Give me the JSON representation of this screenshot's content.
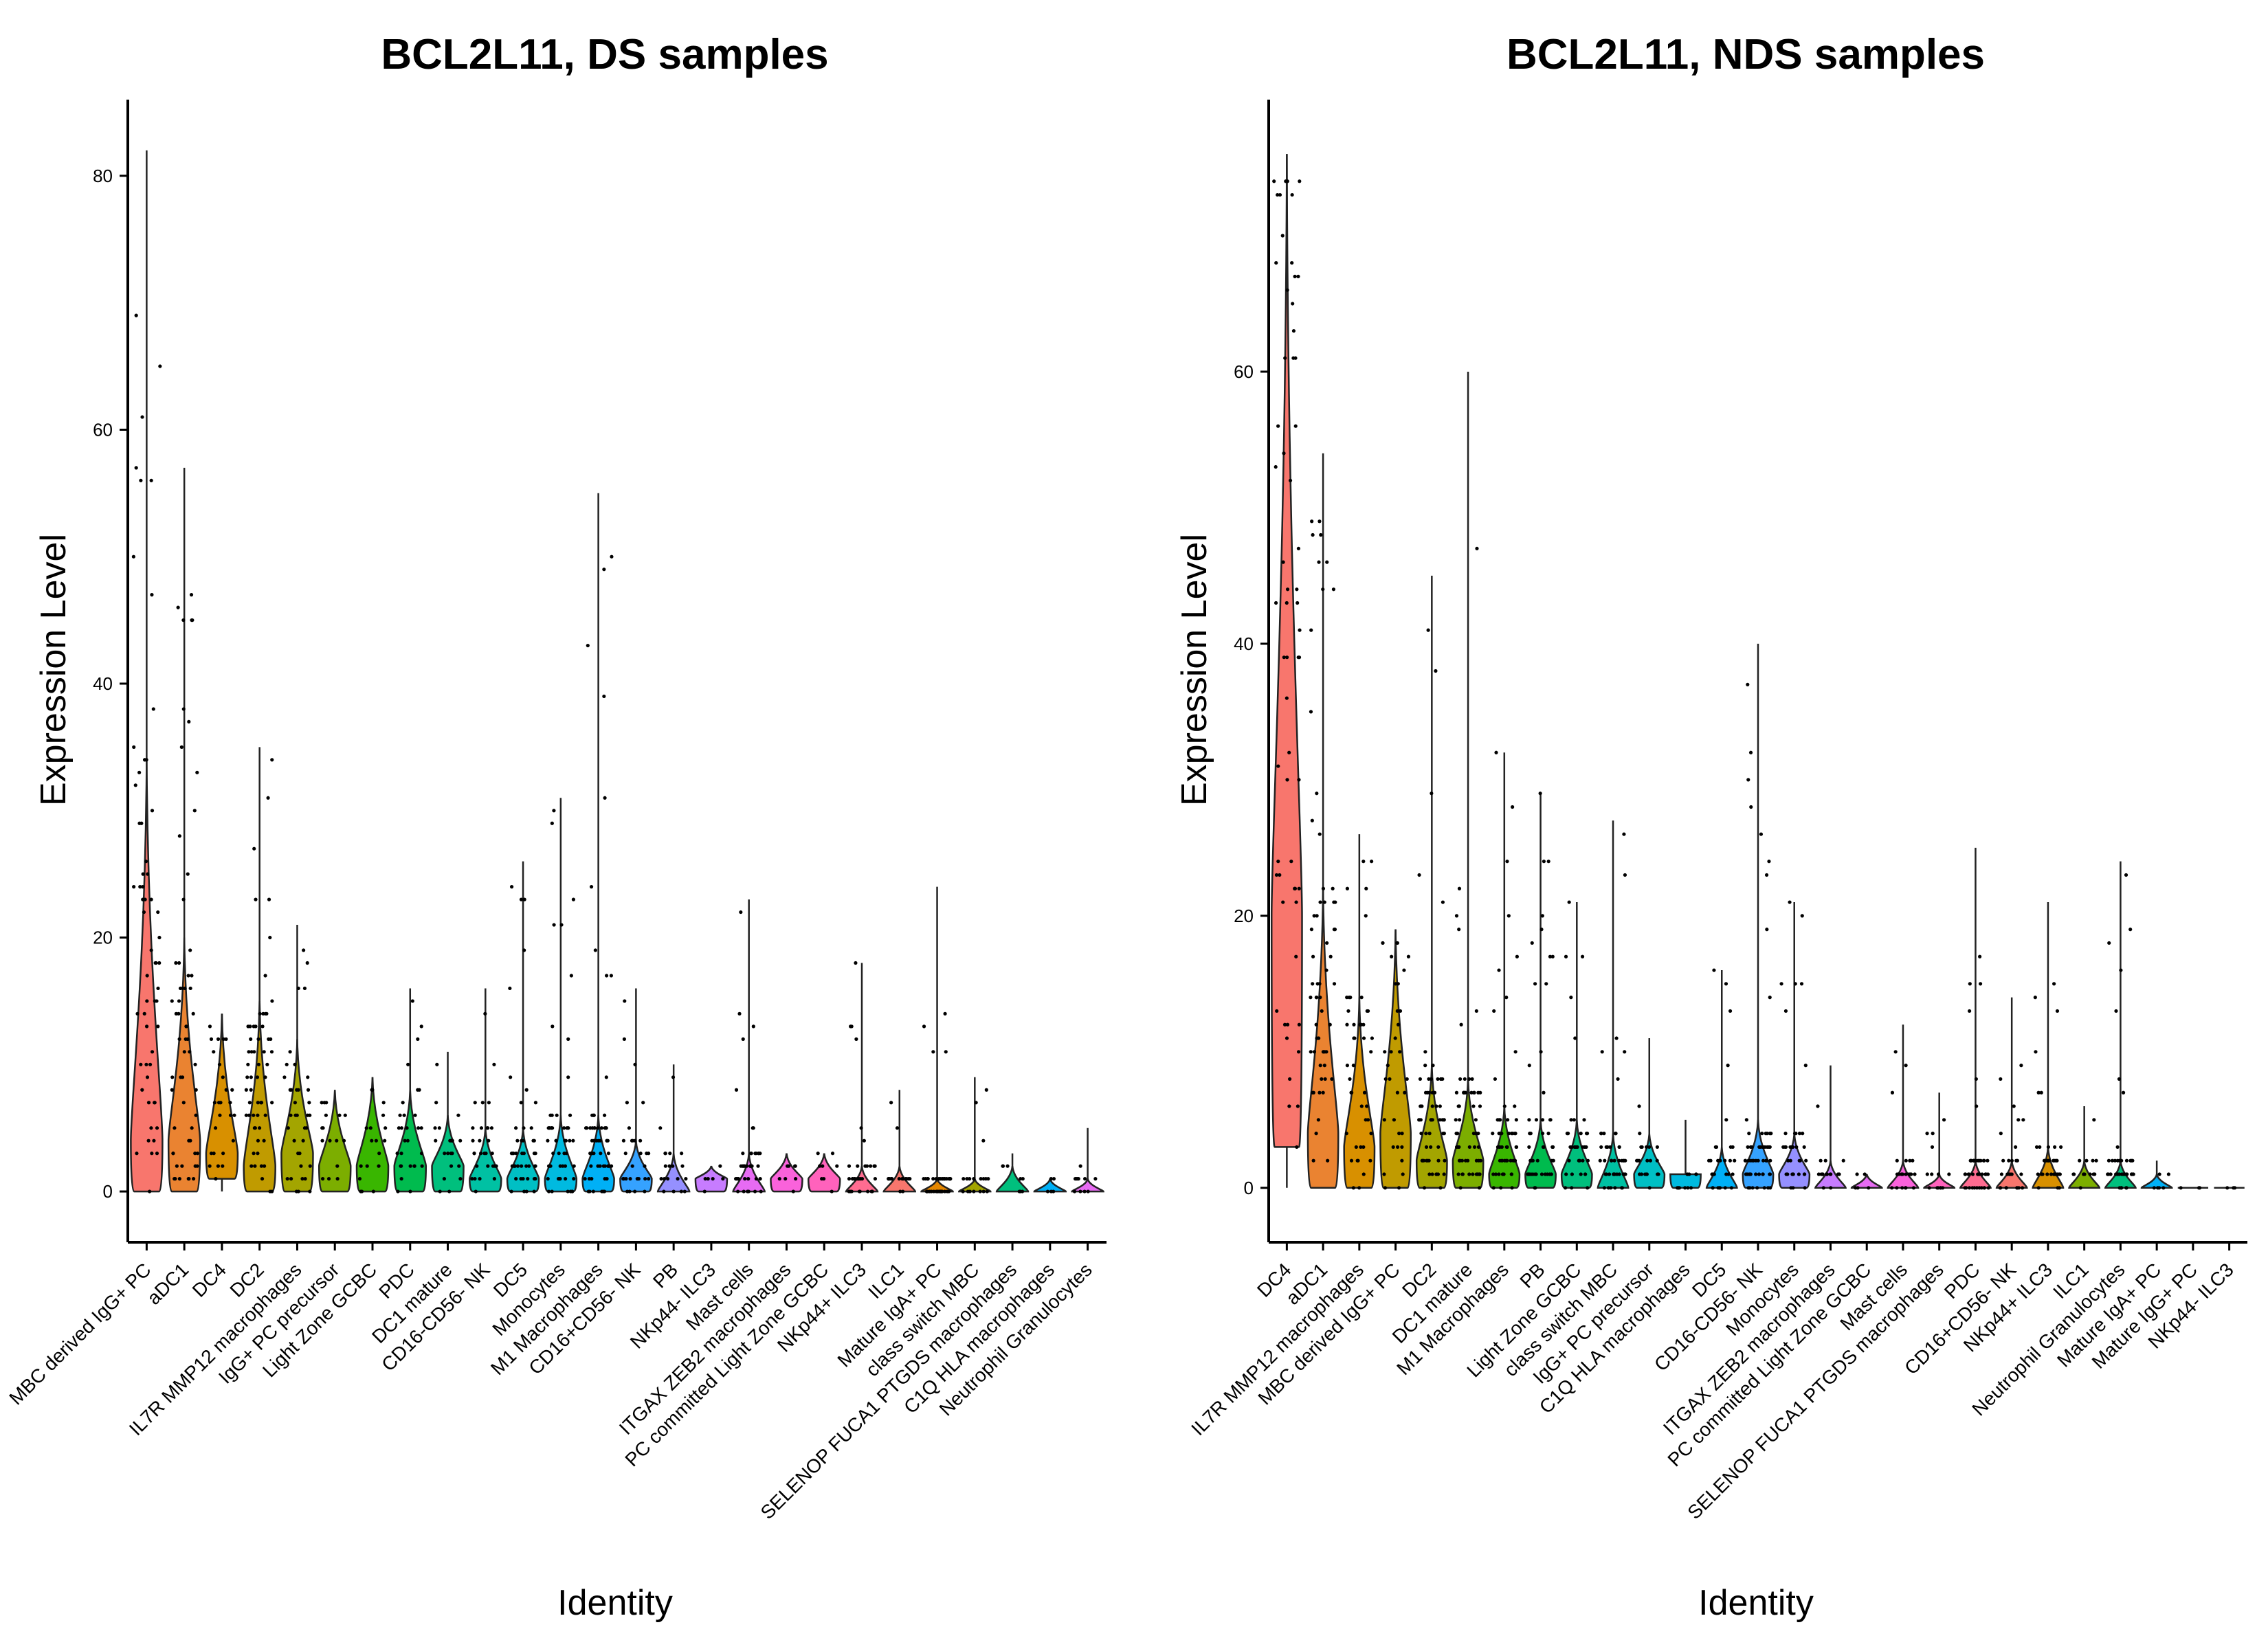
{
  "chart_data": [
    {
      "type": "violin",
      "title": "BCL2L11, DS samples",
      "xlabel": "Identity",
      "ylabel": "Expression Level",
      "ylim": [
        -4,
        86
      ],
      "yticks": [
        0,
        20,
        40,
        60,
        80
      ],
      "legend": "none",
      "grid": false,
      "categories": [
        {
          "name": "MBC derived IgG+ PC",
          "color": "#F8766D",
          "max": 82,
          "body": [
            0,
            34
          ],
          "median": 4
        },
        {
          "name": "aDC1",
          "color": "#EA8331",
          "max": 57,
          "body": [
            0,
            20
          ],
          "median": 4
        },
        {
          "name": "DC4",
          "color": "#D89000",
          "max": 14,
          "body": [
            1,
            14
          ],
          "median": 3
        },
        {
          "name": "DC2",
          "color": "#C09B00",
          "max": 35,
          "body": [
            0,
            15
          ],
          "median": 2
        },
        {
          "name": "IL7R MMP12 macrophages",
          "color": "#A3A500",
          "max": 21,
          "body": [
            0,
            12
          ],
          "median": 3
        },
        {
          "name": "IgG+ PC precursor",
          "color": "#7CAE00",
          "max": 8,
          "body": [
            0,
            8
          ],
          "median": 2
        },
        {
          "name": "Light Zone GCBC",
          "color": "#39B600",
          "max": 9,
          "body": [
            0,
            9
          ],
          "median": 2
        },
        {
          "name": "PDC",
          "color": "#00BB4E",
          "max": 16,
          "body": [
            0,
            8
          ],
          "median": 2
        },
        {
          "name": "DC1 mature",
          "color": "#00BF7D",
          "max": 11,
          "body": [
            0,
            6
          ],
          "median": 2
        },
        {
          "name": "CD16-CD56- NK",
          "color": "#00C1A3",
          "max": 16,
          "body": [
            0,
            5
          ],
          "median": 1
        },
        {
          "name": "DC5",
          "color": "#00BFC4",
          "max": 26,
          "body": [
            0,
            5
          ],
          "median": 1
        },
        {
          "name": "Monocytes",
          "color": "#00BAE0",
          "max": 31,
          "body": [
            0,
            6
          ],
          "median": 1
        },
        {
          "name": "M1 Macrophages",
          "color": "#00B0F6",
          "max": 55,
          "body": [
            0,
            6
          ],
          "median": 1
        },
        {
          "name": "CD16+CD56- NK",
          "color": "#35A2FF",
          "max": 16,
          "body": [
            0,
            4
          ],
          "median": 1
        },
        {
          "name": "PB",
          "color": "#9590FF",
          "max": 10,
          "body": [
            0,
            3
          ],
          "median": 0
        },
        {
          "name": "NKp44- ILC3",
          "color": "#C77CFF",
          "max": 2,
          "body": [
            0,
            2
          ],
          "median": 1
        },
        {
          "name": "Mast cells",
          "color": "#E76BF3",
          "max": 23,
          "body": [
            0,
            3
          ],
          "median": 0
        },
        {
          "name": "ITGAX ZEB2 macrophages",
          "color": "#FA62DB",
          "max": 3,
          "body": [
            0,
            3
          ],
          "median": 1
        },
        {
          "name": "PC committed Light Zone GCBC",
          "color": "#FF62BC",
          "max": 3,
          "body": [
            0,
            3
          ],
          "median": 1
        },
        {
          "name": "NKp44+ ILC3",
          "color": "#FF6C91",
          "max": 18,
          "body": [
            0,
            2
          ],
          "median": 0
        },
        {
          "name": "ILC1",
          "color": "#F8766D",
          "max": 8,
          "body": [
            0,
            2
          ],
          "median": 0
        },
        {
          "name": "Mature IgA+ PC",
          "color": "#E58700",
          "max": 24,
          "body": [
            0,
            1
          ],
          "median": 0
        },
        {
          "name": "class switch MBC",
          "color": "#A3A500",
          "max": 9,
          "body": [
            0,
            1
          ],
          "median": 0
        },
        {
          "name": "SELENOP FUCA1 PTGDS macrophages",
          "color": "#00BF7D",
          "max": 3,
          "body": [
            0,
            2
          ],
          "median": 0
        },
        {
          "name": "C1Q HLA macrophages",
          "color": "#00B0F6",
          "max": 1,
          "body": [
            0,
            1
          ],
          "median": 0
        },
        {
          "name": "Neutrophil Granulocytes",
          "color": "#E76BF3",
          "max": 5,
          "body": [
            0,
            1
          ],
          "median": 0
        }
      ]
    },
    {
      "type": "violin",
      "title": "BCL2L11, NDS samples",
      "xlabel": "Identity",
      "ylabel": "Expression Level",
      "ylim": [
        -4,
        80
      ],
      "yticks": [
        0,
        20,
        40,
        60
      ],
      "legend": "none",
      "grid": false,
      "categories": [
        {
          "name": "DC4",
          "color": "#F8766D",
          "max": 76,
          "body": [
            3,
            76
          ],
          "median": 20
        },
        {
          "name": "aDC1",
          "color": "#EA8331",
          "max": 54,
          "body": [
            0,
            22
          ],
          "median": 4
        },
        {
          "name": "IL7R MMP12 macrophages",
          "color": "#D89000",
          "max": 26,
          "body": [
            0,
            14
          ],
          "median": 3
        },
        {
          "name": "MBC derived IgG+ PC",
          "color": "#C09B00",
          "max": 19,
          "body": [
            0,
            19
          ],
          "median": 4
        },
        {
          "name": "DC2",
          "color": "#A3A500",
          "max": 45,
          "body": [
            0,
            9
          ],
          "median": 2
        },
        {
          "name": "DC1 mature",
          "color": "#7CAE00",
          "max": 60,
          "body": [
            0,
            8
          ],
          "median": 2
        },
        {
          "name": "M1 Macrophages",
          "color": "#39B600",
          "max": 32,
          "body": [
            0,
            6
          ],
          "median": 1
        },
        {
          "name": "PB",
          "color": "#00BB4E",
          "max": 29,
          "body": [
            0,
            5
          ],
          "median": 1
        },
        {
          "name": "Light Zone GCBC",
          "color": "#00BF7D",
          "max": 21,
          "body": [
            0,
            5
          ],
          "median": 1
        },
        {
          "name": "class switch MBC",
          "color": "#00C1A3",
          "max": 27,
          "body": [
            0,
            4
          ],
          "median": 0
        },
        {
          "name": "IgG+ PC precursor",
          "color": "#00BFC4",
          "max": 11,
          "body": [
            0,
            4
          ],
          "median": 1
        },
        {
          "name": "C1Q HLA macrophages",
          "color": "#00BAE0",
          "max": 5,
          "body": [
            0,
            1
          ],
          "median": 1
        },
        {
          "name": "DC5",
          "color": "#00B0F6",
          "max": 16,
          "body": [
            0,
            3
          ],
          "median": 0
        },
        {
          "name": "CD16-CD56- NK",
          "color": "#35A2FF",
          "max": 40,
          "body": [
            0,
            5
          ],
          "median": 1
        },
        {
          "name": "Monocytes",
          "color": "#9590FF",
          "max": 21,
          "body": [
            0,
            4
          ],
          "median": 1
        },
        {
          "name": "ITGAX ZEB2 macrophages",
          "color": "#C77CFF",
          "max": 9,
          "body": [
            0,
            2
          ],
          "median": 0
        },
        {
          "name": "PC committed Light Zone GCBC",
          "color": "#E76BF3",
          "max": 1,
          "body": [
            0,
            1
          ],
          "median": 0
        },
        {
          "name": "Mast cells",
          "color": "#FA62DB",
          "max": 12,
          "body": [
            0,
            2
          ],
          "median": 0
        },
        {
          "name": "SELENOP FUCA1 PTGDS macrophages",
          "color": "#FF62BC",
          "max": 7,
          "body": [
            0,
            1
          ],
          "median": 0
        },
        {
          "name": "PDC",
          "color": "#FF6C91",
          "max": 25,
          "body": [
            0,
            2
          ],
          "median": 0
        },
        {
          "name": "CD16+CD56- NK",
          "color": "#F8766D",
          "max": 14,
          "body": [
            0,
            2
          ],
          "median": 0
        },
        {
          "name": "NKp44+ ILC3",
          "color": "#D89000",
          "max": 21,
          "body": [
            0,
            3
          ],
          "median": 0
        },
        {
          "name": "ILC1",
          "color": "#7CAE00",
          "max": 6,
          "body": [
            0,
            2
          ],
          "median": 0
        },
        {
          "name": "Neutrophil Granulocytes",
          "color": "#00BF7D",
          "max": 24,
          "body": [
            0,
            2
          ],
          "median": 0
        },
        {
          "name": "Mature IgA+ PC",
          "color": "#00B0F6",
          "max": 2,
          "body": [
            0,
            1
          ],
          "median": 0
        },
        {
          "name": "Mature IgG+ PC",
          "color": "#9590FF",
          "max": 0,
          "body": [
            0,
            0
          ],
          "median": 0
        },
        {
          "name": "NKp44- ILC3",
          "color": "#E76BF3",
          "max": 0,
          "body": [
            0,
            0
          ],
          "median": 0
        }
      ]
    }
  ]
}
